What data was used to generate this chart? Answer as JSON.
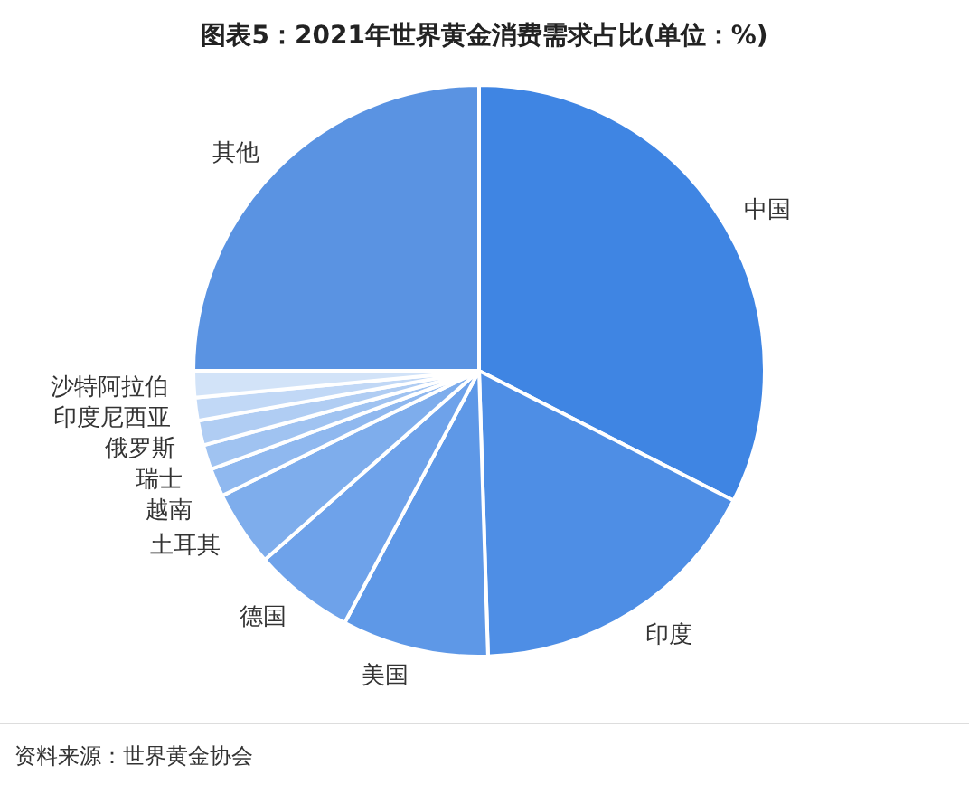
{
  "chart_data": {
    "type": "pie",
    "title": "图表5：2021年世界黄金消费需求占比(单位：%)",
    "categories": [
      "中国",
      "印度",
      "美国",
      "德国",
      "土耳其",
      "越南",
      "瑞士",
      "俄罗斯",
      "印度尼西亚",
      "沙特阿拉伯",
      "其他"
    ],
    "values": [
      32.5,
      17.0,
      8.3,
      5.7,
      4.3,
      1.6,
      1.4,
      1.4,
      1.3,
      1.5,
      25.0
    ],
    "colors": [
      "#3f85e3",
      "#4e8ee5",
      "#5e98e7",
      "#6ea2ea",
      "#7eadec",
      "#8fb8ef",
      "#a0c3f1",
      "#b0cdf3",
      "#c1d8f6",
      "#d2e3f8",
      "#5a93e2"
    ],
    "annotations": [
      "资料来源：世界黄金协会"
    ]
  }
}
